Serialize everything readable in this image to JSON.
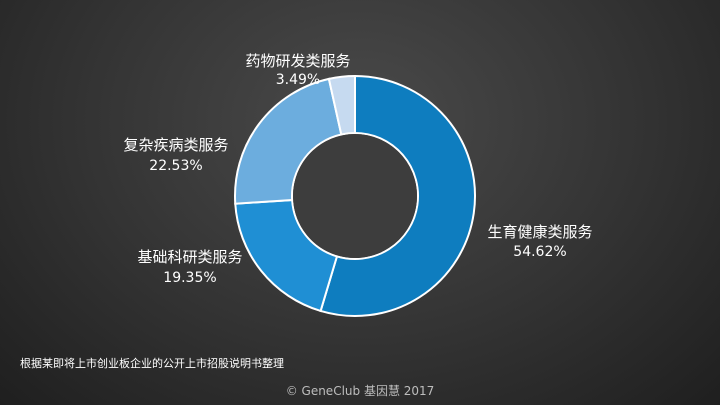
{
  "chart_data": {
    "type": "pie",
    "donut": true,
    "slices": [
      {
        "name": "生育健康类服务",
        "value": 54.62,
        "value_label": "54.62%",
        "color": "#0e7dbf"
      },
      {
        "name": "基础科研类服务",
        "value": 19.35,
        "value_label": "19.35%",
        "color": "#1f8fd4"
      },
      {
        "name": "复杂疾病类服务",
        "value": 22.53,
        "value_label": "22.53%",
        "color": "#6cadde"
      },
      {
        "name": "药物研发类服务",
        "value": 3.49,
        "value_label": "3.49%",
        "color": "#c6daf0"
      }
    ]
  },
  "note": "根据某即将上市创业板企业的公开上市招股说明书整理",
  "footer": "© GeneClub 基因慧 2017"
}
